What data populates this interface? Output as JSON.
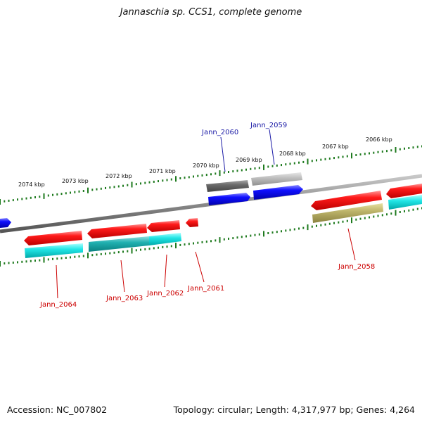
{
  "title": "Jannaschia sp. CCS1, complete genome",
  "footer": {
    "accession": "Accession: NC_007802",
    "summary": "Topology: circular; Length: 4,317,977 bp; Genes: 4,264"
  },
  "colors": {
    "backbone": "#888888",
    "tick": "#1e7a1e",
    "forward_label": "#1a1aa6",
    "reverse_label": "#cc0000",
    "red": "#ee0000",
    "blue": "#0000ee",
    "cyan": "#00cccc",
    "teal": "#11aaaa",
    "olive": "#b0a850",
    "dark_gray": "#666666",
    "light_gray": "#b8b8b8"
  },
  "ticks": [
    "2074 kbp",
    "2073 kbp",
    "2072 kbp",
    "2071 kbp",
    "2070 kbp",
    "2069 kbp",
    "2068 kbp",
    "2067 kbp",
    "2066 kbp"
  ],
  "genes": [
    {
      "label": "Jann_2060",
      "strand": "forward"
    },
    {
      "label": "Jann_2059",
      "strand": "forward"
    },
    {
      "label": "Jann_2064",
      "strand": "reverse"
    },
    {
      "label": "Jann_2063",
      "strand": "reverse"
    },
    {
      "label": "Jann_2062",
      "strand": "reverse"
    },
    {
      "label": "Jann_2061",
      "strand": "reverse"
    },
    {
      "label": "Jann_2058",
      "strand": "reverse"
    }
  ]
}
